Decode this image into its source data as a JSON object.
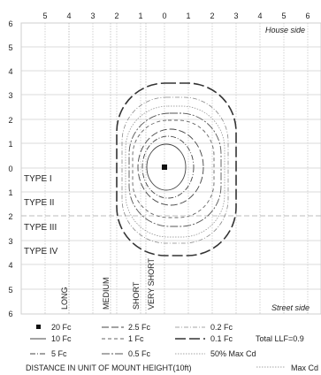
{
  "diagram": {
    "top_ticks": [
      "5",
      "4",
      "3",
      "2",
      "1",
      "0",
      "1",
      "2",
      "3",
      "4",
      "5",
      "6"
    ],
    "left_ticks": [
      "6",
      "5",
      "4",
      "3",
      "2",
      "1",
      "0",
      "1",
      "2",
      "3",
      "4",
      "5",
      "6"
    ],
    "house_side": "House side",
    "street_side": "Street side",
    "types": [
      "TYPE I",
      "TYPE II",
      "TYPE III",
      "TYPE IV"
    ],
    "ranges": [
      "LONG",
      "MEDIUM",
      "SHORT",
      "VERY SHORT"
    ],
    "legend": {
      "col1": [
        "20 Fc",
        "10 Fc",
        "5 Fc"
      ],
      "col2": [
        "2.5 Fc",
        "1 Fc",
        "0.5 Fc"
      ],
      "col3": [
        "0.2 Fc",
        "0.1 Fc",
        "50% Max Cd"
      ],
      "total_llf": "Total LLF=0.9",
      "footer": "DISTANCE IN UNIT OF MOUNT HEIGHT(10ft)",
      "max_cd": "Max Cd"
    },
    "colors": {
      "grid": "#c8c8c8",
      "text": "#222222",
      "type_divider": "#bdbdbd"
    }
  }
}
